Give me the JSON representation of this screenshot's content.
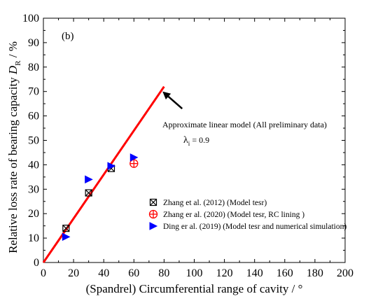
{
  "chart_data": {
    "type": "scatter",
    "panel_label": "(b)",
    "xlabel": "(Spandrel) Circumferential range of  cavity / °",
    "ylabel_prefix": "Relative loss rate of bearing capacity ",
    "ylabel_symbol": "D",
    "ylabel_subscript": "R",
    "ylabel_suffix": " / %",
    "xlim": [
      0,
      200
    ],
    "ylim": [
      0,
      100
    ],
    "x_ticks": [
      0,
      20,
      40,
      60,
      80,
      100,
      120,
      140,
      160,
      180,
      200
    ],
    "y_ticks": [
      0,
      10,
      20,
      30,
      40,
      50,
      60,
      70,
      80,
      90,
      100
    ],
    "x_tick_labels": [
      "0",
      "20",
      "40",
      "60",
      "80",
      "100",
      "120",
      "140",
      "160",
      "180",
      "200"
    ],
    "y_tick_labels": [
      "0",
      "10",
      "20",
      "30",
      "40",
      "50",
      "60",
      "70",
      "80",
      "90",
      "100"
    ],
    "grid": false,
    "legend_position": "lower-right",
    "series": [
      {
        "name": "Zhang et al. (2012) (Model tesr)",
        "marker": "square-x",
        "color": "#000000",
        "points": [
          [
            15,
            14
          ],
          [
            30,
            28.5
          ],
          [
            45,
            38.5
          ]
        ]
      },
      {
        "name": "Zhang er al. (2020) (Model tesr, RC lining )",
        "marker": "circle-plus",
        "color": "#ff0000",
        "points": [
          [
            60,
            40.5
          ]
        ]
      },
      {
        "name": "Ding er al. (2019) (Model tesr and numerical simulation)",
        "marker": "triangle-right",
        "color": "#0000ff",
        "points": [
          [
            15,
            10.5
          ],
          [
            30,
            34
          ],
          [
            45,
            39.5
          ],
          [
            60,
            43
          ]
        ]
      }
    ],
    "line": {
      "color": "#ff0000",
      "x": [
        0,
        80
      ],
      "y": [
        0,
        72
      ]
    },
    "annotation": {
      "text": "Approximate linear model (All preliminary data)",
      "lambda_symbol": "λ",
      "lambda_subscript": "i",
      "lambda_value": " = 0.9",
      "arrow_from": [
        92,
        63
      ],
      "arrow_to": [
        79,
        70
      ]
    }
  }
}
